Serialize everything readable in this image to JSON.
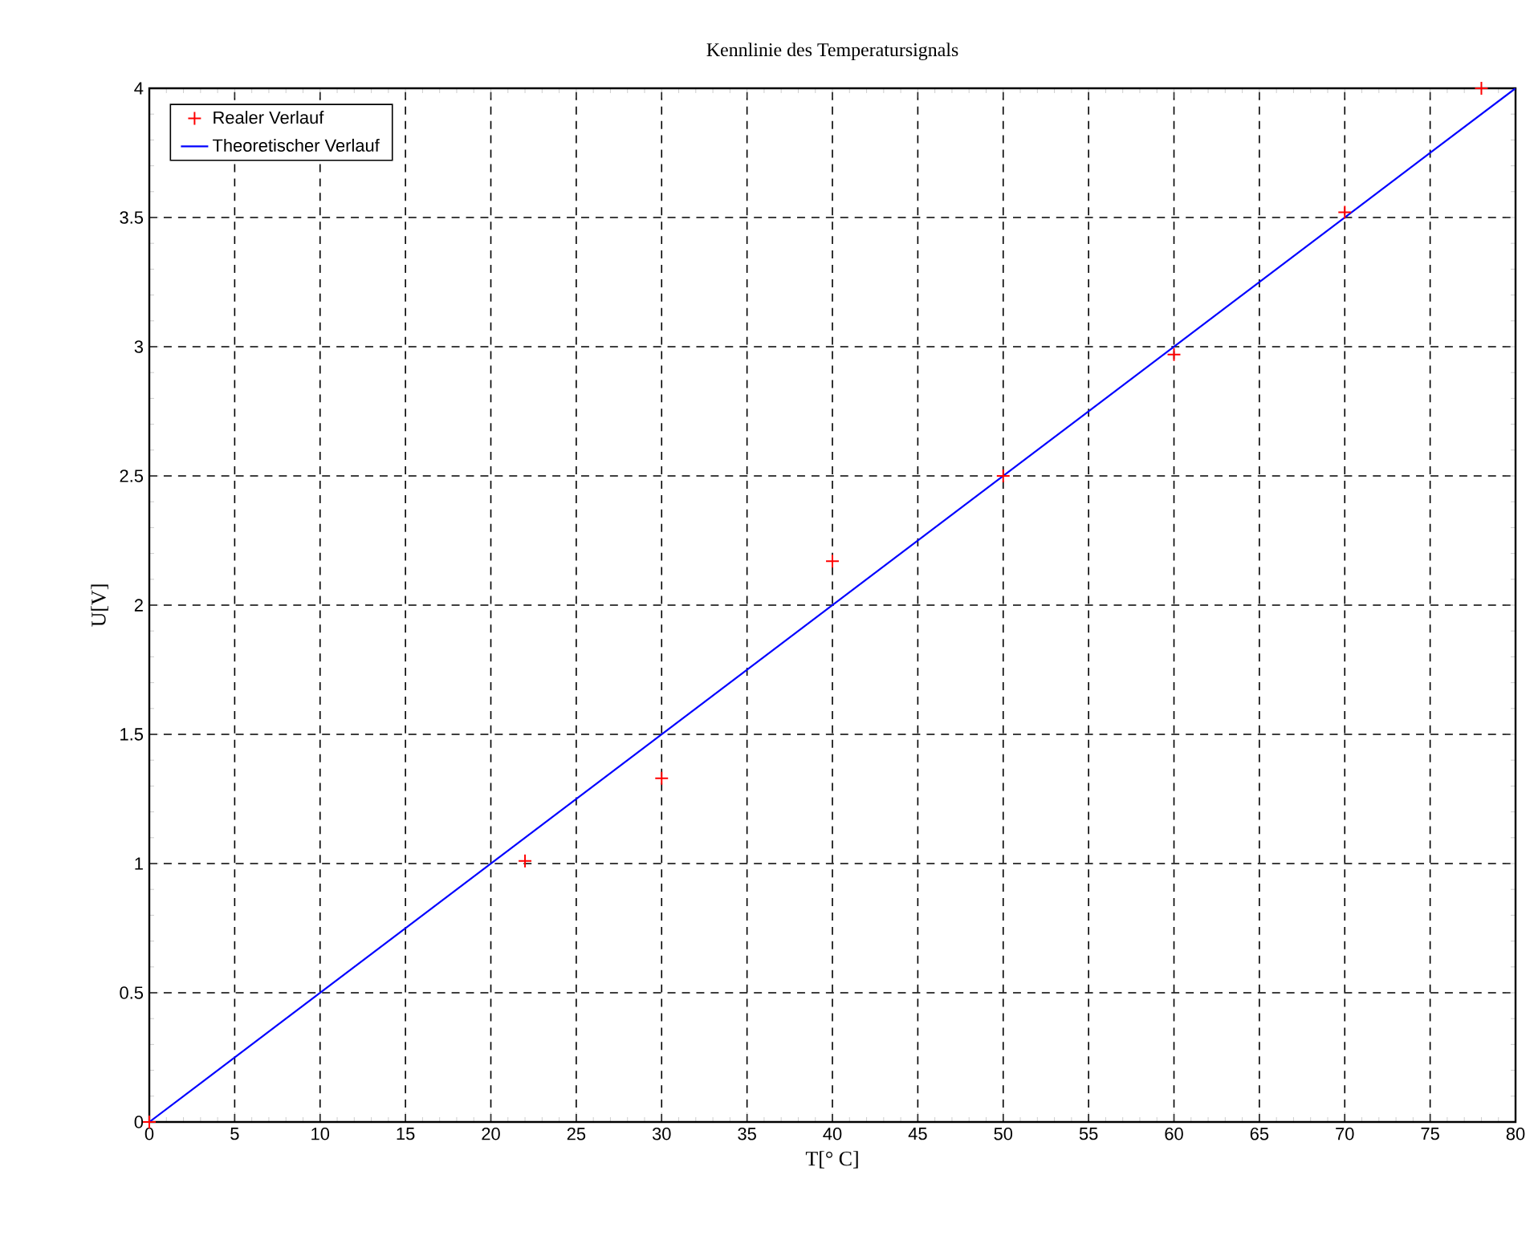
{
  "chart_data": {
    "type": "scatter",
    "title": "Kennlinie des Temperatursignals",
    "xlabel": "T[° C]",
    "ylabel": "U[V]",
    "xlim": [
      0,
      80
    ],
    "xticks": [
      0,
      5,
      10,
      15,
      20,
      25,
      30,
      35,
      40,
      45,
      50,
      55,
      60,
      65,
      70,
      75,
      80
    ],
    "ylim": [
      0,
      4
    ],
    "yticks": [
      0,
      0.5,
      1,
      1.5,
      2,
      2.5,
      3,
      3.5,
      4
    ],
    "grid": true,
    "legend": "top left",
    "series": [
      {
        "name": "Realer Verlauf",
        "marker": "cross",
        "color": "#ff0000",
        "x": [
          0,
          22,
          30,
          40,
          50,
          60,
          70,
          78
        ],
        "values": [
          0,
          1.01,
          1.33,
          2.17,
          2.5,
          2.97,
          3.52,
          4.0
        ]
      },
      {
        "name": "Theoretischer Verlauf",
        "type": "line",
        "marker": "none",
        "line_style": "solid",
        "color": "#0000ff",
        "x": [
          0,
          80
        ],
        "values": [
          0,
          4
        ]
      }
    ]
  }
}
